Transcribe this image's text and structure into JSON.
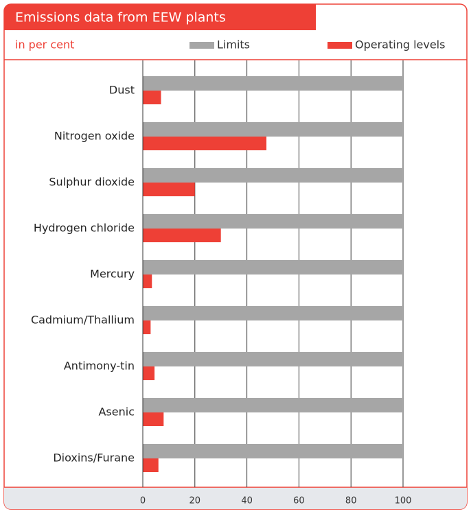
{
  "chart_data": {
    "type": "bar",
    "orientation": "horizontal",
    "title": "Emissions data from EEW plants",
    "subtitle": "in per cent",
    "categories": [
      "Dust",
      "Nitrogen oxide",
      "Sulphur dioxide",
      "Hydrogen chloride",
      "Mercury",
      "Cadmium/Thallium",
      "Antimony-tin",
      "Asenic",
      "Dioxins/Furane"
    ],
    "series": [
      {
        "name": "Limits",
        "color": "#a6a6a6",
        "values": [
          100,
          100,
          100,
          100,
          100,
          100,
          100,
          100,
          100
        ]
      },
      {
        "name": "Operating levels",
        "color": "#ee4036",
        "values": [
          7,
          47.5,
          20,
          30,
          3.5,
          3,
          4.5,
          8,
          6
        ]
      }
    ],
    "xlim": [
      0,
      100
    ],
    "xticks": [
      0,
      20,
      40,
      60,
      80,
      100
    ],
    "grid": true
  }
}
